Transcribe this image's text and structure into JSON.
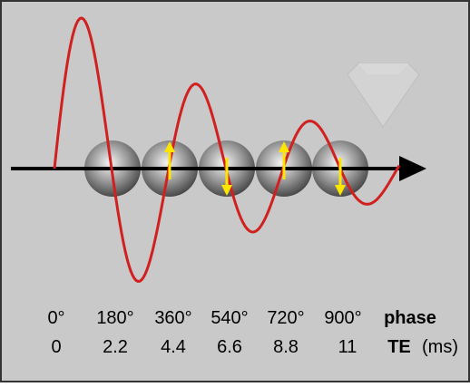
{
  "phase_row": {
    "labels": [
      "0°",
      "180°",
      "360°",
      "540°",
      "720°",
      "900°"
    ],
    "label": "phase"
  },
  "te_row": {
    "labels": [
      "0",
      "2.2",
      "4.4",
      "6.6",
      "8.8",
      "11"
    ],
    "label": "TE",
    "unit": "(ms)"
  }
}
